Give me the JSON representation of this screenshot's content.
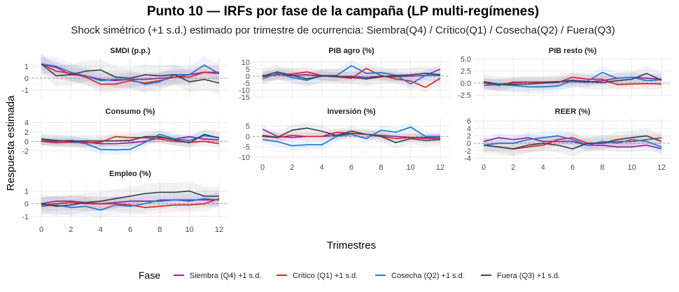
{
  "chart_data": {
    "type": "line",
    "title": "Punto 10 — IRFs por fase de la campaña (LP multi-regímenes)",
    "subtitle": "Shock simétrico (+1 s.d.) estimado por trimestre de ocurrencia: Siembra(Q4) / Crítico(Q1) / Cosecha(Q2) / Fuera(Q3)",
    "xlabel": "Trimestres",
    "ylabel": "Respuesta estimada",
    "legend_title": "Fase",
    "legend_position": "bottom",
    "x": [
      0,
      1,
      2,
      3,
      4,
      5,
      6,
      7,
      8,
      9,
      10,
      11,
      12
    ],
    "x_ticks": [
      0,
      2,
      4,
      6,
      8,
      10,
      12
    ],
    "series_meta": [
      {
        "name": "Siembra (Q4) +1 s.d.",
        "color": "#8e24aa"
      },
      {
        "name": "Crítico (Q1) +1 s.d.",
        "color": "#d62728"
      },
      {
        "name": "Cosecha (Q2) +1 s.d.",
        "color": "#1f77d4"
      },
      {
        "name": "Fuera (Q3) +1 s.d.",
        "color": "#37474f"
      }
    ],
    "panels": [
      {
        "title": "SMDI (p.p.)",
        "ylim": [
          -1.7,
          1.7
        ],
        "yticks": [
          1,
          0,
          -1
        ],
        "ytick_labels": [
          "1",
          "0",
          "-1"
        ],
        "band": 0.7,
        "series": [
          [
            1.2,
            0.9,
            0.3,
            0.2,
            -0.1,
            -0.2,
            -0.1,
            -0.1,
            0.0,
            0.1,
            0.3,
            0.5,
            0.4
          ],
          [
            1.2,
            0.6,
            0.4,
            0.1,
            -0.5,
            -0.5,
            -0.2,
            -0.4,
            -0.2,
            0.1,
            0.1,
            0.5,
            0.5
          ],
          [
            1.2,
            1.0,
            0.5,
            0.2,
            -0.2,
            -0.1,
            -0.1,
            -0.5,
            -0.3,
            0.3,
            0.3,
            1.1,
            0.4
          ],
          [
            1.2,
            0.2,
            0.3,
            0.6,
            0.7,
            0.1,
            0.0,
            0.3,
            0.2,
            0.3,
            -0.3,
            -0.1,
            -0.4
          ]
        ]
      },
      {
        "title": "PIB agro (%)",
        "ylim": [
          -16,
          13
        ],
        "yticks": [
          10,
          5,
          0,
          -5,
          -10,
          -15
        ],
        "ytick_labels": [
          "10",
          "5",
          "0",
          "-5",
          "-10",
          "-15"
        ],
        "band": 4,
        "series": [
          [
            0.5,
            1.0,
            0.5,
            1.0,
            0.2,
            -0.5,
            0.0,
            -1.0,
            0.0,
            -0.5,
            0.0,
            0.5,
            5.0
          ],
          [
            -0.5,
            1.0,
            1.5,
            3.0,
            0.5,
            -0.5,
            -1.5,
            5.5,
            0.5,
            -2.0,
            -3.5,
            -8.0,
            -1.5
          ],
          [
            -2.0,
            2.0,
            -1.0,
            -3.0,
            0.5,
            0.5,
            7.5,
            2.0,
            2.5,
            0.5,
            -5.5,
            0.5,
            0.5
          ],
          [
            0.0,
            3.0,
            0.5,
            -2.0,
            0.0,
            0.0,
            -1.0,
            -2.0,
            -0.5,
            0.5,
            1.0,
            2.0,
            1.0
          ]
        ]
      },
      {
        "title": "PIB resto (%)",
        "ylim": [
          -3.2,
          5.2
        ],
        "yticks": [
          5,
          2.5,
          0,
          -2.5
        ],
        "ytick_labels": [
          "5.0",
          "2.5",
          "0.0",
          "-2.5"
        ],
        "band": 1.2,
        "series": [
          [
            0.0,
            -0.3,
            0.0,
            0.2,
            0.2,
            0.3,
            0.3,
            0.2,
            0.5,
            1.0,
            1.2,
            1.0,
            0.8
          ],
          [
            0.0,
            -0.5,
            0.2,
            0.2,
            0.0,
            0.1,
            1.2,
            0.8,
            0.8,
            -0.3,
            -0.2,
            -0.1,
            -0.2
          ],
          [
            -0.5,
            -0.3,
            -0.5,
            -0.8,
            -0.8,
            -0.6,
            0.5,
            0.4,
            2.2,
            1.0,
            1.2,
            0.5,
            0.7
          ],
          [
            0.3,
            -0.2,
            -0.3,
            -0.2,
            0.0,
            0.2,
            0.6,
            0.3,
            0.1,
            0.5,
            0.8,
            2.0,
            0.6
          ]
        ]
      },
      {
        "title": "Consumo (%)",
        "ylim": [
          -3.8,
          4.8
        ],
        "yticks": [
          4,
          2,
          0,
          -2
        ],
        "ytick_labels": [
          "4",
          "2",
          "0",
          "-2"
        ],
        "band": 1.0,
        "series": [
          [
            0.0,
            0.0,
            0.2,
            -0.2,
            -0.5,
            -0.5,
            -0.3,
            0.0,
            0.8,
            0.5,
            1.0,
            0.5,
            0.3
          ],
          [
            0.0,
            -0.3,
            -0.2,
            -0.3,
            -0.2,
            1.0,
            0.8,
            0.8,
            0.5,
            0.0,
            -0.2,
            0.0,
            -0.5
          ],
          [
            0.3,
            0.2,
            0.0,
            -0.5,
            -1.7,
            -1.8,
            -1.7,
            -0.2,
            1.5,
            0.5,
            0.2,
            1.2,
            0.8
          ],
          [
            0.5,
            0.2,
            0.0,
            0.1,
            0.1,
            0.1,
            0.2,
            1.0,
            1.0,
            0.3,
            -0.3,
            1.5,
            0.7
          ]
        ]
      },
      {
        "title": "Inversión (%)",
        "ylim": [
          -11,
          8.5
        ],
        "yticks": [
          5,
          0,
          -5,
          -10
        ],
        "ytick_labels": [
          "5",
          "0",
          "-5",
          "-10"
        ],
        "band": 2.2,
        "series": [
          [
            3.5,
            0.0,
            -0.5,
            0.0,
            0.0,
            0.5,
            1.5,
            1.0,
            0.5,
            0.0,
            -0.5,
            -0.5,
            -0.3
          ],
          [
            0.0,
            -0.5,
            0.5,
            0.0,
            0.0,
            2.0,
            1.5,
            1.0,
            0.0,
            -1.0,
            -0.5,
            -1.0,
            -1.0
          ],
          [
            -1.5,
            -2.5,
            -4.5,
            -4.0,
            -4.0,
            0.0,
            1.0,
            -1.0,
            3.0,
            2.0,
            4.5,
            0.0,
            0.0
          ],
          [
            0.5,
            -0.5,
            3.0,
            4.0,
            2.5,
            0.5,
            2.5,
            1.0,
            0.0,
            -3.0,
            -1.0,
            -2.0,
            -1.5
          ]
        ]
      },
      {
        "title": "REER (%)",
        "ylim": [
          -4.3,
          6.6
        ],
        "yticks": [
          6,
          4,
          2,
          0,
          -2,
          -4
        ],
        "ytick_labels": [
          "6",
          "4",
          "2",
          "0",
          "-2",
          "-4"
        ],
        "band": 1.6,
        "series": [
          [
            0.5,
            1.5,
            1.0,
            1.5,
            0.5,
            0.5,
            0.5,
            -0.5,
            -0.5,
            -1.0,
            -1.0,
            -0.5,
            -1.5
          ],
          [
            -0.5,
            -1.0,
            -1.5,
            -1.0,
            -0.5,
            1.0,
            1.5,
            0.0,
            0.0,
            0.5,
            0.5,
            1.0,
            1.5
          ],
          [
            -0.5,
            0.0,
            0.0,
            1.0,
            1.5,
            2.0,
            1.0,
            -0.5,
            0.5,
            0.0,
            1.0,
            0.5,
            -1.0
          ],
          [
            -0.5,
            -1.0,
            -1.5,
            -0.5,
            0.0,
            -0.5,
            -1.5,
            0.0,
            0.0,
            1.0,
            1.5,
            2.0,
            0.5
          ]
        ]
      },
      {
        "title": "Empleo (%)",
        "ylim": [
          -1.4,
          1.8
        ],
        "yticks": [
          1,
          0,
          -1
        ],
        "ytick_labels": [
          "1",
          "0",
          "-1"
        ],
        "band": 0.6,
        "series": [
          [
            0.0,
            0.2,
            0.2,
            0.1,
            0.0,
            0.1,
            0.2,
            0.2,
            0.2,
            0.3,
            0.3,
            0.3,
            0.3
          ],
          [
            -0.1,
            0.0,
            0.1,
            0.0,
            0.0,
            0.0,
            -0.1,
            -0.3,
            -0.2,
            -0.1,
            -0.1,
            0.0,
            0.4
          ],
          [
            -0.2,
            -0.1,
            -0.3,
            -0.2,
            -0.5,
            -0.1,
            -0.2,
            0.0,
            0.3,
            0.3,
            0.2,
            0.4,
            0.3
          ],
          [
            0.0,
            -0.2,
            -0.1,
            0.1,
            0.2,
            0.4,
            0.6,
            0.8,
            0.9,
            0.9,
            1.0,
            0.6,
            0.6
          ]
        ]
      }
    ]
  }
}
